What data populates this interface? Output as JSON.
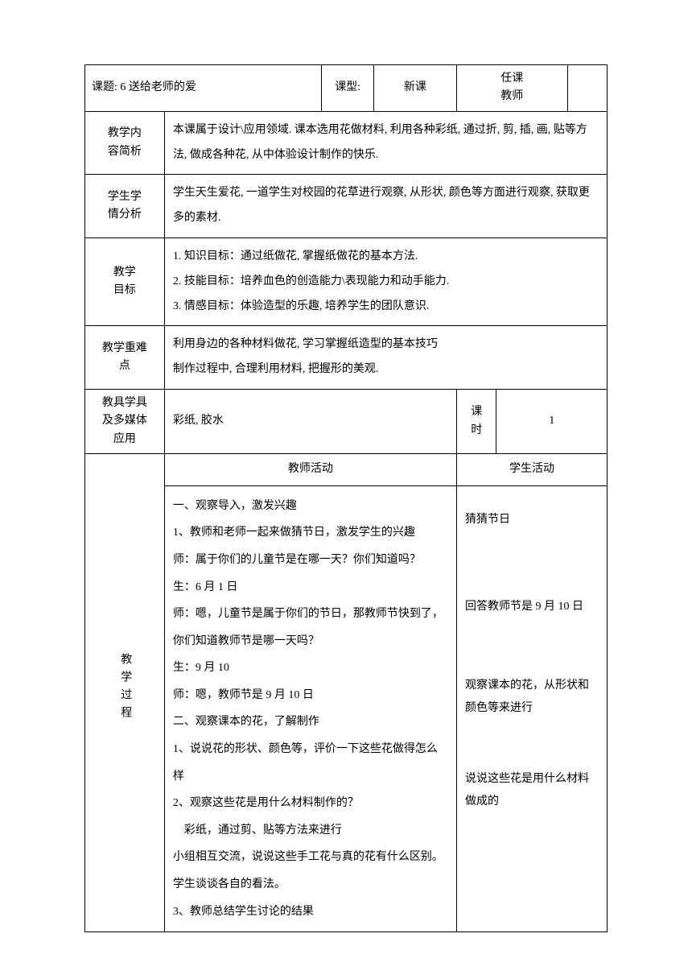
{
  "header": {
    "topic_label": "课题:",
    "topic_value": "6 送给老师的爱",
    "type_label": "课型:",
    "type_value": "新课",
    "teacher_label_l1": "任课",
    "teacher_label_l2": "教师",
    "teacher_value": ""
  },
  "rows": {
    "content_analysis": {
      "label_l1": "教学内",
      "label_l2": "容简析",
      "text": "本课属于设计\\应用领域. 课本选用花做材料, 利用各种彩纸, 通过折, 剪, 插, 画, 贴等方法, 做成各种花, 从中体验设计制作的快乐."
    },
    "student_analysis": {
      "label_l1": "学生学",
      "label_l2": "情分析",
      "text": "学生天生爱花, 一道学生对校园的花草进行观察, 从形状, 颜色等方面进行观察, 获取更多的素材."
    },
    "objectives": {
      "label_l1": "教学",
      "label_l2": "目标",
      "line1": "1. 知识目标：通过纸做花, 掌握纸做花的基本方法.",
      "line2": "2. 技能目标：培养血色的创造能力\\表现能力和动手能力.",
      "line3": "3. 情感目标：体验造型的乐趣, 培养学生的团队意识."
    },
    "key_points": {
      "label_l1": "教学重难",
      "label_l2": "点",
      "line1": "利用身边的各种材料做花, 学习掌握纸造型的基本技巧",
      "line2": "制作过程中, 合理利用材料, 把握形的美观."
    },
    "tools": {
      "label_l1": "教具学具",
      "label_l2": "及多媒体",
      "label_l3": "应用",
      "text": "彩纸, 胶水",
      "period_label_l1": "课",
      "period_label_l2": "时",
      "period_value": "1"
    }
  },
  "process": {
    "label": "教学过程",
    "teacher_header": "教师活动",
    "student_header": "学生活动",
    "teacher_lines": [
      "一、观察导入，激发兴趣",
      "1、教师和老师一起来做猜节日，激发学生的兴趣",
      "师：属于你们的儿童节是在哪一天？你们知道吗？",
      "生：6 月 1 日",
      "师：嗯，儿童节是属于你们的节日，那教师节快到了，你们知道教师节是哪一天吗？",
      "生：9 月 10",
      "师：嗯，教师节是 9 月 10 日",
      "二、观察课本的花，了解制作",
      "1、说说花的形状、颜色等，评价一下这些花做得怎么样",
      "2、观察这些花是用什么材料制作的？",
      "　彩纸，通过剪、贴等方法来进行",
      "小组相互交流，说说这些手工花与真的花有什么区别。",
      "学生谈谈各自的看法。",
      "3、教师总结学生讨论的结果"
    ],
    "student_blocks": [
      "猜猜节日",
      "回答教师节是 9 月 10 日",
      "观察课本的花，从形状和颜色等来进行",
      "说说这些花是用什么材料做成的"
    ]
  }
}
